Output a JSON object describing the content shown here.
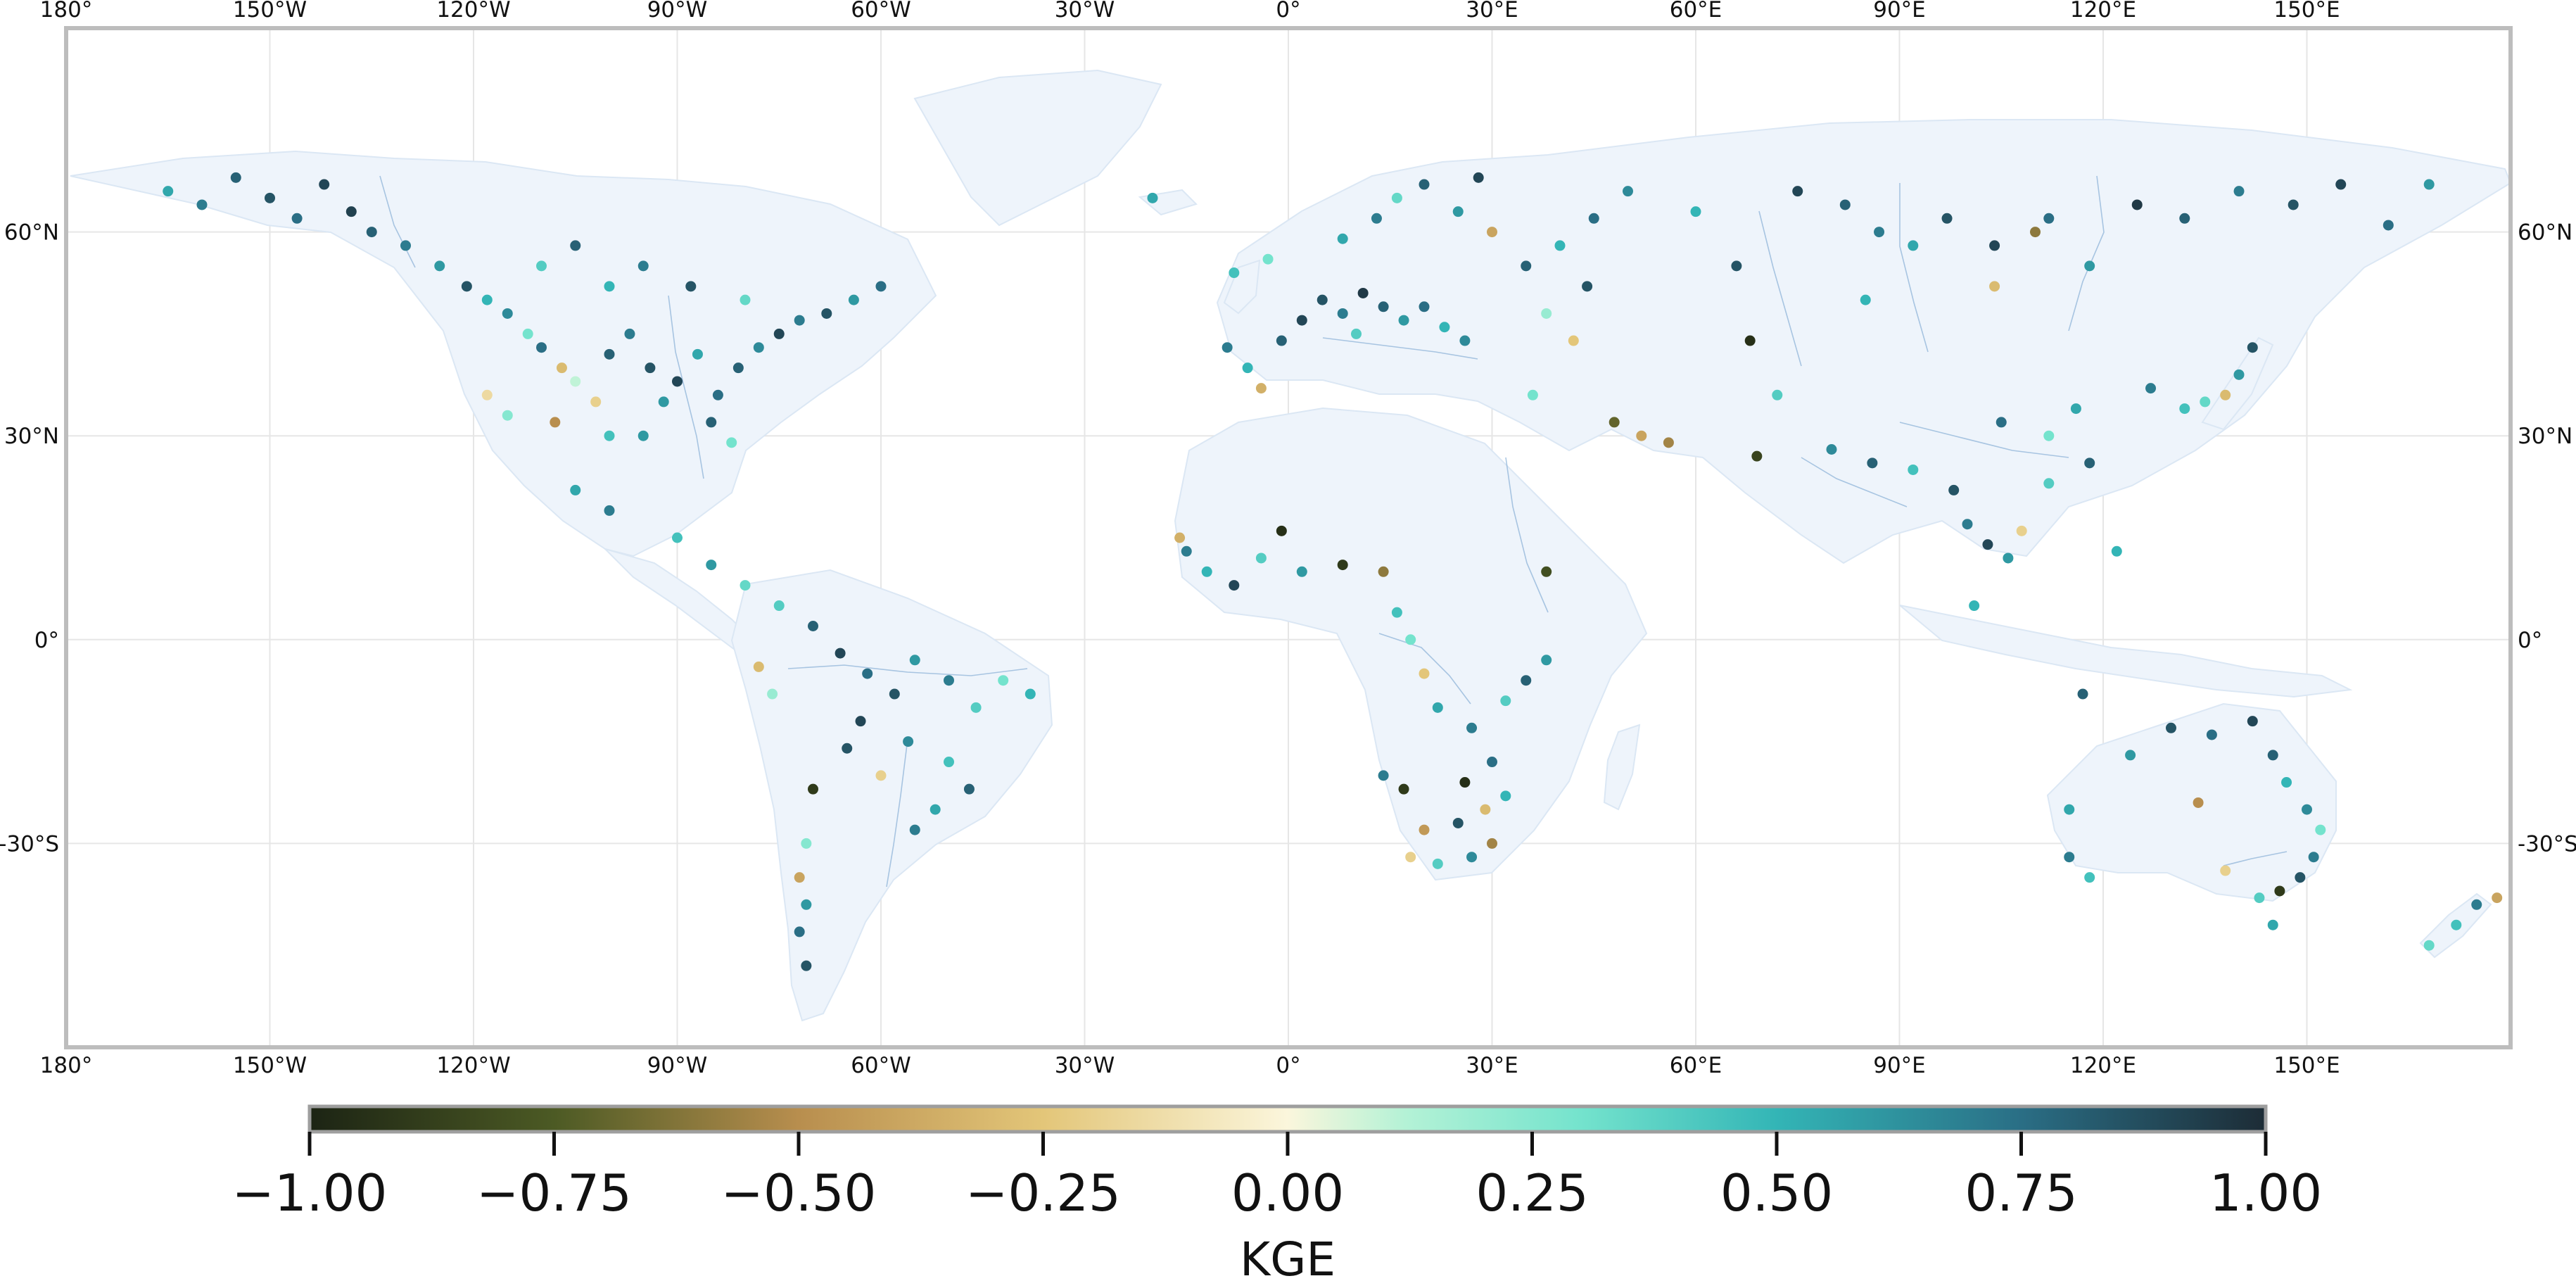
{
  "map": {
    "lon_ticks": [
      {
        "lon": -180,
        "label": "180°"
      },
      {
        "lon": -150,
        "label": "150°W"
      },
      {
        "lon": -120,
        "label": "120°W"
      },
      {
        "lon": -90,
        "label": "90°W"
      },
      {
        "lon": -60,
        "label": "60°W"
      },
      {
        "lon": -30,
        "label": "30°W"
      },
      {
        "lon": 0,
        "label": "0°"
      },
      {
        "lon": 30,
        "label": "30°E"
      },
      {
        "lon": 60,
        "label": "60°E"
      },
      {
        "lon": 90,
        "label": "90°E"
      },
      {
        "lon": 120,
        "label": "120°E"
      },
      {
        "lon": 150,
        "label": "150°E"
      }
    ],
    "lat_ticks": [
      {
        "lat": 60,
        "label": "60°N"
      },
      {
        "lat": 30,
        "label": "30°N"
      },
      {
        "lat": 0,
        "label": "0°"
      },
      {
        "lat": -30,
        "label": "-30°S"
      }
    ],
    "extent": {
      "lon_min": -180,
      "lon_max": 180,
      "lat_min": -60,
      "lat_max": 90
    },
    "land_color": "#eef4fb",
    "river_color": "#7fa8d0",
    "frame_color": "#bdbdbd"
  },
  "colorbar": {
    "label": "KGE",
    "range": [
      -1.0,
      1.0
    ],
    "ticks": [
      {
        "value": -1.0,
        "label": "−1.00"
      },
      {
        "value": -0.75,
        "label": "−0.75"
      },
      {
        "value": -0.5,
        "label": "−0.50"
      },
      {
        "value": -0.25,
        "label": "−0.25"
      },
      {
        "value": 0.0,
        "label": "0.00"
      },
      {
        "value": 0.25,
        "label": "0.25"
      },
      {
        "value": 0.5,
        "label": "0.50"
      },
      {
        "value": 0.75,
        "label": "0.75"
      },
      {
        "value": 1.0,
        "label": "1.00"
      }
    ],
    "stops": [
      {
        "value": -1.0,
        "color": "#1c2414"
      },
      {
        "value": -0.75,
        "color": "#4c5a24"
      },
      {
        "value": -0.5,
        "color": "#b88e4e"
      },
      {
        "value": -0.25,
        "color": "#e3c679"
      },
      {
        "value": 0.0,
        "color": "#fbf6dc"
      },
      {
        "value": 0.12,
        "color": "#b4f2d6"
      },
      {
        "value": 0.3,
        "color": "#74e3cd"
      },
      {
        "value": 0.5,
        "color": "#33b5b6"
      },
      {
        "value": 0.75,
        "color": "#2a6e85"
      },
      {
        "value": 1.0,
        "color": "#1d2c36"
      }
    ]
  },
  "stations": [
    {
      "lon": -165,
      "lat": 66,
      "kge": 0.55
    },
    {
      "lon": -160,
      "lat": 64,
      "kge": 0.7
    },
    {
      "lon": -155,
      "lat": 68,
      "kge": 0.8
    },
    {
      "lon": -150,
      "lat": 65,
      "kge": 0.85
    },
    {
      "lon": -146,
      "lat": 62,
      "kge": 0.75
    },
    {
      "lon": -142,
      "lat": 67,
      "kge": 0.9
    },
    {
      "lon": -138,
      "lat": 63,
      "kge": 0.92
    },
    {
      "lon": -135,
      "lat": 60,
      "kge": 0.8
    },
    {
      "lon": -130,
      "lat": 58,
      "kge": 0.7
    },
    {
      "lon": -125,
      "lat": 55,
      "kge": 0.6
    },
    {
      "lon": -121,
      "lat": 52,
      "kge": 0.85
    },
    {
      "lon": -118,
      "lat": 50,
      "kge": 0.5
    },
    {
      "lon": -115,
      "lat": 48,
      "kge": 0.65
    },
    {
      "lon": -112,
      "lat": 45,
      "kge": 0.3
    },
    {
      "lon": -110,
      "lat": 43,
      "kge": 0.75
    },
    {
      "lon": -107,
      "lat": 40,
      "kge": -0.3
    },
    {
      "lon": -105,
      "lat": 38,
      "kge": 0.1
    },
    {
      "lon": -102,
      "lat": 35,
      "kge": -0.2
    },
    {
      "lon": -100,
      "lat": 42,
      "kge": 0.8
    },
    {
      "lon": -97,
      "lat": 45,
      "kge": 0.7
    },
    {
      "lon": -94,
      "lat": 40,
      "kge": 0.85
    },
    {
      "lon": -92,
      "lat": 35,
      "kge": 0.6
    },
    {
      "lon": -90,
      "lat": 38,
      "kge": 0.9
    },
    {
      "lon": -87,
      "lat": 42,
      "kge": 0.55
    },
    {
      "lon": -84,
      "lat": 36,
      "kge": 0.75
    },
    {
      "lon": -81,
      "lat": 40,
      "kge": 0.8
    },
    {
      "lon": -78,
      "lat": 43,
      "kge": 0.65
    },
    {
      "lon": -75,
      "lat": 45,
      "kge": 0.9
    },
    {
      "lon": -72,
      "lat": 47,
      "kge": 0.7
    },
    {
      "lon": -68,
      "lat": 48,
      "kge": 0.85
    },
    {
      "lon": -64,
      "lat": 50,
      "kge": 0.6
    },
    {
      "lon": -60,
      "lat": 52,
      "kge": 0.75
    },
    {
      "lon": -110,
      "lat": 55,
      "kge": 0.4
    },
    {
      "lon": -105,
      "lat": 58,
      "kge": 0.8
    },
    {
      "lon": -100,
      "lat": 52,
      "kge": 0.5
    },
    {
      "lon": -95,
      "lat": 55,
      "kge": 0.7
    },
    {
      "lon": -88,
      "lat": 52,
      "kge": 0.85
    },
    {
      "lon": -80,
      "lat": 50,
      "kge": 0.35
    },
    {
      "lon": -118,
      "lat": 36,
      "kge": -0.15
    },
    {
      "lon": -115,
      "lat": 33,
      "kge": 0.25
    },
    {
      "lon": -108,
      "lat": 32,
      "kge": -0.5
    },
    {
      "lon": -100,
      "lat": 30,
      "kge": 0.45
    },
    {
      "lon": -95,
      "lat": 30,
      "kge": 0.6
    },
    {
      "lon": -85,
      "lat": 32,
      "kge": 0.8
    },
    {
      "lon": -82,
      "lat": 29,
      "kge": 0.3
    },
    {
      "lon": -105,
      "lat": 22,
      "kge": 0.55
    },
    {
      "lon": -100,
      "lat": 19,
      "kge": 0.7
    },
    {
      "lon": -90,
      "lat": 15,
      "kge": 0.45
    },
    {
      "lon": -85,
      "lat": 11,
      "kge": 0.6
    },
    {
      "lon": -80,
      "lat": 8,
      "kge": 0.35
    },
    {
      "lon": -75,
      "lat": 5,
      "kge": 0.4
    },
    {
      "lon": -70,
      "lat": 2,
      "kge": 0.8
    },
    {
      "lon": -66,
      "lat": -2,
      "kge": 0.9
    },
    {
      "lon": -62,
      "lat": -5,
      "kge": 0.75
    },
    {
      "lon": -58,
      "lat": -8,
      "kge": 0.85
    },
    {
      "lon": -55,
      "lat": -3,
      "kge": 0.6
    },
    {
      "lon": -50,
      "lat": -6,
      "kge": 0.7
    },
    {
      "lon": -46,
      "lat": -10,
      "kge": 0.4
    },
    {
      "lon": -42,
      "lat": -6,
      "kge": 0.3
    },
    {
      "lon": -38,
      "lat": -8,
      "kge": 0.5
    },
    {
      "lon": -63,
      "lat": -12,
      "kge": 0.9
    },
    {
      "lon": -56,
      "lat": -15,
      "kge": 0.65
    },
    {
      "lon": -50,
      "lat": -18,
      "kge": 0.45
    },
    {
      "lon": -47,
      "lat": -22,
      "kge": 0.8
    },
    {
      "lon": -52,
      "lat": -25,
      "kge": 0.55
    },
    {
      "lon": -55,
      "lat": -28,
      "kge": 0.7
    },
    {
      "lon": -60,
      "lat": -20,
      "kge": -0.2
    },
    {
      "lon": -65,
      "lat": -16,
      "kge": 0.85
    },
    {
      "lon": -70,
      "lat": -22,
      "kge": -0.9
    },
    {
      "lon": -71,
      "lat": -30,
      "kge": 0.25
    },
    {
      "lon": -72,
      "lat": -35,
      "kge": -0.4
    },
    {
      "lon": -71,
      "lat": -39,
      "kge": 0.6
    },
    {
      "lon": -72,
      "lat": -43,
      "kge": 0.75
    },
    {
      "lon": -71,
      "lat": -48,
      "kge": 0.85
    },
    {
      "lon": -78,
      "lat": -4,
      "kge": -0.3
    },
    {
      "lon": -76,
      "lat": -8,
      "kge": 0.2
    },
    {
      "lon": -9,
      "lat": 43,
      "kge": 0.7
    },
    {
      "lon": -6,
      "lat": 40,
      "kge": 0.5
    },
    {
      "lon": -4,
      "lat": 37,
      "kge": -0.35
    },
    {
      "lon": -1,
      "lat": 44,
      "kge": 0.8
    },
    {
      "lon": 2,
      "lat": 47,
      "kge": 0.9
    },
    {
      "lon": 5,
      "lat": 50,
      "kge": 0.85
    },
    {
      "lon": 8,
      "lat": 48,
      "kge": 0.7
    },
    {
      "lon": 11,
      "lat": 51,
      "kge": 0.95
    },
    {
      "lon": 14,
      "lat": 49,
      "kge": 0.8
    },
    {
      "lon": 17,
      "lat": 47,
      "kge": 0.6
    },
    {
      "lon": 20,
      "lat": 49,
      "kge": 0.75
    },
    {
      "lon": 23,
      "lat": 46,
      "kge": 0.5
    },
    {
      "lon": 26,
      "lat": 44,
      "kge": 0.65
    },
    {
      "lon": 10,
      "lat": 45,
      "kge": 0.4
    },
    {
      "lon": 8,
      "lat": 59,
      "kge": 0.55
    },
    {
      "lon": 13,
      "lat": 62,
      "kge": 0.7
    },
    {
      "lon": 16,
      "lat": 65,
      "kge": 0.35
    },
    {
      "lon": 20,
      "lat": 67,
      "kge": 0.8
    },
    {
      "lon": 25,
      "lat": 63,
      "kge": 0.6
    },
    {
      "lon": 28,
      "lat": 68,
      "kge": 0.9
    },
    {
      "lon": 30,
      "lat": 60,
      "kge": -0.4
    },
    {
      "lon": -8,
      "lat": 54,
      "kge": 0.45
    },
    {
      "lon": -3,
      "lat": 56,
      "kge": 0.3
    },
    {
      "lon": -20,
      "lat": 65,
      "kge": 0.55
    },
    {
      "lon": 35,
      "lat": 55,
      "kge": 0.8
    },
    {
      "lon": 40,
      "lat": 58,
      "kge": 0.5
    },
    {
      "lon": 44,
      "lat": 52,
      "kge": 0.85
    },
    {
      "lon": 38,
      "lat": 48,
      "kge": 0.2
    },
    {
      "lon": 42,
      "lat": 44,
      "kge": -0.25
    },
    {
      "lon": 48,
      "lat": 32,
      "kge": -0.7
    },
    {
      "lon": 52,
      "lat": 30,
      "kge": -0.4
    },
    {
      "lon": 56,
      "lat": 29,
      "kge": -0.55
    },
    {
      "lon": 36,
      "lat": 36,
      "kge": 0.3
    },
    {
      "lon": 45,
      "lat": 62,
      "kge": 0.75
    },
    {
      "lon": 50,
      "lat": 66,
      "kge": 0.65
    },
    {
      "lon": 60,
      "lat": 63,
      "kge": 0.5
    },
    {
      "lon": 66,
      "lat": 55,
      "kge": 0.85
    },
    {
      "lon": 68,
      "lat": 44,
      "kge": -0.95
    },
    {
      "lon": 72,
      "lat": 36,
      "kge": 0.4
    },
    {
      "lon": 69,
      "lat": 27,
      "kge": -0.85
    },
    {
      "lon": 75,
      "lat": 66,
      "kge": 0.9
    },
    {
      "lon": 82,
      "lat": 64,
      "kge": 0.8
    },
    {
      "lon": 87,
      "lat": 60,
      "kge": 0.7
    },
    {
      "lon": 92,
      "lat": 58,
      "kge": 0.55
    },
    {
      "lon": 97,
      "lat": 62,
      "kge": 0.85
    },
    {
      "lon": 104,
      "lat": 58,
      "kge": 0.9
    },
    {
      "lon": 112,
      "lat": 62,
      "kge": 0.75
    },
    {
      "lon": 118,
      "lat": 55,
      "kge": 0.6
    },
    {
      "lon": 125,
      "lat": 64,
      "kge": 0.95
    },
    {
      "lon": 132,
      "lat": 62,
      "kge": 0.8
    },
    {
      "lon": 140,
      "lat": 66,
      "kge": 0.7
    },
    {
      "lon": 148,
      "lat": 64,
      "kge": 0.85
    },
    {
      "lon": 155,
      "lat": 67,
      "kge": 0.9
    },
    {
      "lon": 162,
      "lat": 61,
      "kge": 0.75
    },
    {
      "lon": 168,
      "lat": 67,
      "kge": 0.6
    },
    {
      "lon": 104,
      "lat": 52,
      "kge": -0.3
    },
    {
      "lon": 110,
      "lat": 60,
      "kge": -0.6
    },
    {
      "lon": 85,
      "lat": 50,
      "kge": 0.5
    },
    {
      "lon": 80,
      "lat": 28,
      "kge": 0.65
    },
    {
      "lon": 86,
      "lat": 26,
      "kge": 0.8
    },
    {
      "lon": 92,
      "lat": 25,
      "kge": 0.45
    },
    {
      "lon": 98,
      "lat": 22,
      "kge": 0.85
    },
    {
      "lon": 100,
      "lat": 17,
      "kge": 0.7
    },
    {
      "lon": 103,
      "lat": 14,
      "kge": 0.9
    },
    {
      "lon": 106,
      "lat": 12,
      "kge": 0.6
    },
    {
      "lon": 108,
      "lat": 16,
      "kge": -0.2
    },
    {
      "lon": 101,
      "lat": 5,
      "kge": 0.5
    },
    {
      "lon": 105,
      "lat": 32,
      "kge": 0.75
    },
    {
      "lon": 112,
      "lat": 30,
      "kge": 0.3
    },
    {
      "lon": 116,
      "lat": 34,
      "kge": 0.55
    },
    {
      "lon": 118,
      "lat": 26,
      "kge": 0.8
    },
    {
      "lon": 112,
      "lat": 23,
      "kge": 0.4
    },
    {
      "lon": 127,
      "lat": 37,
      "kge": 0.7
    },
    {
      "lon": 132,
      "lat": 34,
      "kge": 0.45
    },
    {
      "lon": 135,
      "lat": 35,
      "kge": 0.35
    },
    {
      "lon": 138,
      "lat": 36,
      "kge": -0.3
    },
    {
      "lon": 140,
      "lat": 39,
      "kge": 0.6
    },
    {
      "lon": 142,
      "lat": 43,
      "kge": 0.85
    },
    {
      "lon": 122,
      "lat": 13,
      "kge": 0.5
    },
    {
      "lon": 117,
      "lat": -8,
      "kge": 0.8
    },
    {
      "lon": -15,
      "lat": 13,
      "kge": 0.7
    },
    {
      "lon": -12,
      "lat": 10,
      "kge": 0.5
    },
    {
      "lon": -8,
      "lat": 8,
      "kge": 0.9
    },
    {
      "lon": -4,
      "lat": 12,
      "kge": 0.4
    },
    {
      "lon": -1,
      "lat": 16,
      "kge": -0.95
    },
    {
      "lon": 2,
      "lat": 10,
      "kge": 0.6
    },
    {
      "lon": -16,
      "lat": 15,
      "kge": -0.35
    },
    {
      "lon": 8,
      "lat": 11,
      "kge": -0.9
    },
    {
      "lon": 14,
      "lat": 10,
      "kge": -0.6
    },
    {
      "lon": 16,
      "lat": 4,
      "kge": 0.45
    },
    {
      "lon": 18,
      "lat": 0,
      "kge": 0.3
    },
    {
      "lon": 20,
      "lat": -5,
      "kge": -0.25
    },
    {
      "lon": 22,
      "lat": -10,
      "kge": 0.55
    },
    {
      "lon": 27,
      "lat": -13,
      "kge": 0.7
    },
    {
      "lon": 32,
      "lat": -9,
      "kge": 0.4
    },
    {
      "lon": 35,
      "lat": -6,
      "kge": 0.8
    },
    {
      "lon": 38,
      "lat": 10,
      "kge": -0.8
    },
    {
      "lon": 38,
      "lat": -3,
      "kge": 0.6
    },
    {
      "lon": 30,
      "lat": -18,
      "kge": 0.75
    },
    {
      "lon": 26,
      "lat": -21,
      "kge": -0.95
    },
    {
      "lon": 32,
      "lat": -23,
      "kge": 0.5
    },
    {
      "lon": 29,
      "lat": -25,
      "kge": -0.3
    },
    {
      "lon": 25,
      "lat": -27,
      "kge": 0.85
    },
    {
      "lon": 20,
      "lat": -28,
      "kge": -0.45
    },
    {
      "lon": 18,
      "lat": -32,
      "kge": -0.2
    },
    {
      "lon": 22,
      "lat": -33,
      "kge": 0.4
    },
    {
      "lon": 27,
      "lat": -32,
      "kge": 0.65
    },
    {
      "lon": 30,
      "lat": -30,
      "kge": -0.55
    },
    {
      "lon": 17,
      "lat": -22,
      "kge": -0.9
    },
    {
      "lon": 14,
      "lat": -20,
      "kge": 0.7
    },
    {
      "lon": 115,
      "lat": -25,
      "kge": 0.55
    },
    {
      "lon": 115,
      "lat": -32,
      "kge": 0.7
    },
    {
      "lon": 118,
      "lat": -35,
      "kge": 0.45
    },
    {
      "lon": 124,
      "lat": -17,
      "kge": 0.6
    },
    {
      "lon": 130,
      "lat": -13,
      "kge": 0.85
    },
    {
      "lon": 136,
      "lat": -14,
      "kge": 0.75
    },
    {
      "lon": 142,
      "lat": -12,
      "kge": 0.9
    },
    {
      "lon": 145,
      "lat": -17,
      "kge": 0.8
    },
    {
      "lon": 147,
      "lat": -21,
      "kge": 0.5
    },
    {
      "lon": 150,
      "lat": -25,
      "kge": 0.65
    },
    {
      "lon": 152,
      "lat": -28,
      "kge": 0.3
    },
    {
      "lon": 151,
      "lat": -32,
      "kge": 0.7
    },
    {
      "lon": 149,
      "lat": -35,
      "kge": 0.85
    },
    {
      "lon": 146,
      "lat": -37,
      "kge": -0.9
    },
    {
      "lon": 143,
      "lat": -38,
      "kge": 0.4
    },
    {
      "lon": 138,
      "lat": -34,
      "kge": -0.2
    },
    {
      "lon": 134,
      "lat": -24,
      "kge": -0.5
    },
    {
      "lon": 145,
      "lat": -42,
      "kge": 0.55
    },
    {
      "lon": 172,
      "lat": -42,
      "kge": 0.45
    },
    {
      "lon": 175,
      "lat": -39,
      "kge": 0.7
    },
    {
      "lon": 168,
      "lat": -45,
      "kge": 0.35
    },
    {
      "lon": 178,
      "lat": -38,
      "kge": -0.4
    }
  ]
}
